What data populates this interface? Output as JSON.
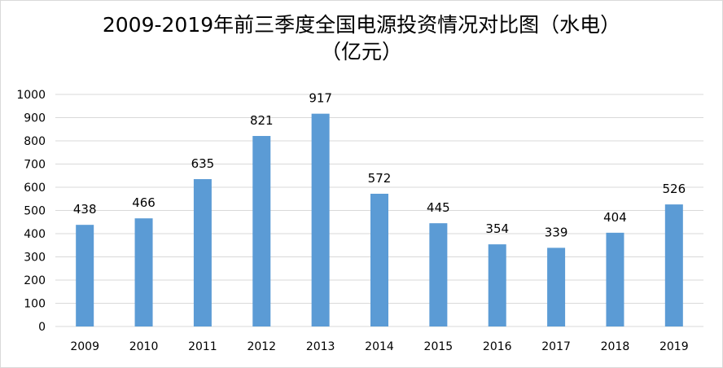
{
  "chart_data": {
    "type": "bar",
    "title_line1": "2009-2019年前三季度全国电源投资情况对比图（水电）",
    "title_line2": "（亿元）",
    "categories": [
      "2009",
      "2010",
      "2011",
      "2012",
      "2013",
      "2014",
      "2015",
      "2016",
      "2017",
      "2018",
      "2019"
    ],
    "values": [
      438,
      466,
      635,
      821,
      917,
      572,
      445,
      354,
      339,
      404,
      526
    ],
    "data_labels": [
      "438",
      "466",
      "635",
      "821",
      "917",
      "572",
      "445",
      "354",
      "339",
      "404",
      "526"
    ],
    "yticks": [
      "0",
      "100",
      "200",
      "300",
      "400",
      "500",
      "600",
      "700",
      "800",
      "900",
      "1000"
    ],
    "ylim": [
      0,
      1000
    ],
    "grid": true,
    "legend": "none",
    "bar_color": "#5b9bd5",
    "grid_color": "#d9d9d9"
  }
}
